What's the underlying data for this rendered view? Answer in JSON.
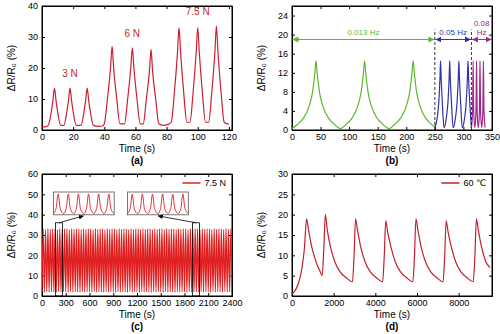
{
  "chart_data": [
    {
      "type": "line",
      "title": "(a)",
      "x_label": "Time (s)",
      "y_label": "ΔR/R₀ (%)",
      "xlim": [
        0,
        122
      ],
      "xticks": [
        0,
        20,
        40,
        60,
        80,
        100,
        120
      ],
      "ylim": [
        0,
        40
      ],
      "yticks": [
        0,
        10,
        20,
        30,
        40
      ],
      "x": [
        0,
        2,
        4,
        6,
        7,
        8,
        9,
        10,
        12,
        14,
        16,
        17,
        18,
        19,
        20,
        22,
        25,
        27,
        28,
        29,
        30,
        31,
        33,
        36,
        39,
        40,
        42,
        44,
        45,
        46,
        48,
        50,
        53,
        55,
        57,
        58,
        59,
        61,
        63,
        65,
        67,
        69,
        70,
        71,
        73,
        75,
        78,
        81,
        83,
        85,
        87,
        88,
        89,
        91,
        93,
        95,
        97,
        99,
        100,
        101,
        103,
        105,
        107,
        109,
        111,
        112,
        113,
        115,
        117,
        119,
        120
      ],
      "series": [
        {
          "color": "#cc1f2f",
          "values": [
            1,
            1,
            1.5,
            6,
            9.5,
            13.5,
            9.5,
            6,
            1.5,
            1.5,
            6,
            9.5,
            13.5,
            9.5,
            6,
            1.5,
            1.5,
            6,
            9.5,
            13.5,
            9.5,
            6,
            1.5,
            1.2,
            1.3,
            2,
            10,
            20,
            27,
            20,
            10,
            2,
            2,
            10,
            20,
            26.5,
            20,
            10,
            2,
            2,
            10,
            19,
            26,
            19,
            10,
            2,
            1.5,
            1.8,
            2.5,
            12,
            25,
            33,
            25,
            12,
            2.5,
            2.5,
            12,
            25,
            33,
            25,
            12,
            2.5,
            2.5,
            12,
            25,
            33.5,
            25,
            12,
            2.5,
            2,
            2
          ]
        }
      ],
      "annotations": [
        {
          "text": "3 N",
          "x": 18,
          "y": 17
        },
        {
          "text": "6 N",
          "x": 58,
          "y": 30
        },
        {
          "text": "7.5 N",
          "x": 100,
          "y": 37
        }
      ]
    },
    {
      "type": "line",
      "title": "(b)",
      "x_label": "Time (s)",
      "y_label": "ΔR/R₀ (%)",
      "xlim": [
        0,
        350
      ],
      "xticks": [
        0,
        50,
        100,
        150,
        200,
        250,
        300,
        350
      ],
      "ylim": [
        0,
        26
      ],
      "yticks": [
        0,
        4,
        8,
        12,
        16,
        20,
        24
      ],
      "series": [
        {
          "color": "#5cb82e",
          "x": [
            0,
            10,
            20,
            30,
            36,
            40,
            42,
            44,
            48,
            54,
            64,
            74,
            85,
            95,
            105,
            115,
            121,
            125,
            127,
            129,
            133,
            139,
            149,
            159,
            170,
            180,
            190,
            200,
            206,
            210,
            212,
            214,
            218,
            224,
            234,
            244,
            250
          ],
          "values": [
            0.3,
            1.2,
            2.5,
            5,
            8,
            12,
            14.5,
            12,
            8,
            5,
            2.5,
            1.2,
            0.3,
            1.2,
            2.5,
            5,
            8,
            12,
            14.5,
            12,
            8,
            5,
            2.5,
            1.2,
            0.3,
            1.2,
            2.5,
            5,
            8,
            12,
            14.5,
            12,
            8,
            5,
            2.5,
            1.2,
            0.6
          ]
        },
        {
          "color": "#2f35a8",
          "x": [
            250,
            254,
            257,
            259,
            260,
            261,
            263,
            266,
            270,
            273,
            275,
            276,
            277,
            279,
            282,
            286,
            289,
            291,
            292,
            293,
            295,
            298,
            302,
            305,
            307,
            308,
            309,
            311,
            314
          ],
          "values": [
            0.5,
            2.5,
            6,
            11,
            14.5,
            11,
            6,
            0.5,
            2.5,
            6,
            11,
            14.5,
            11,
            6,
            0.5,
            2.5,
            6,
            11,
            14.5,
            11,
            6,
            0.5,
            2.5,
            6,
            11,
            14.5,
            11,
            6,
            0.5
          ]
        },
        {
          "color": "#a0298a",
          "x": [
            314,
            316,
            317,
            318,
            320,
            322,
            323,
            324,
            326,
            328,
            329,
            330,
            332,
            334,
            335,
            336,
            338
          ],
          "values": [
            0.5,
            4,
            14.5,
            4,
            0.5,
            4,
            14.5,
            4,
            0.5,
            4,
            14.5,
            4,
            0.5,
            4,
            14.5,
            4,
            0.5
          ]
        }
      ],
      "regions": [
        {
          "label": "0.013 Hz",
          "start": 0,
          "end": 250,
          "color": "#5cb82e"
        },
        {
          "label": "0.05 Hz",
          "start": 250,
          "end": 314,
          "color": "#2f35a8"
        },
        {
          "label": "0.08 Hz",
          "start": 314,
          "end": 350,
          "color": "#a0298a"
        }
      ]
    },
    {
      "type": "line",
      "title": "(c)",
      "x_label": "Time (s)",
      "y_label": "ΔR/R₀ (%)",
      "xlim": [
        0,
        2400
      ],
      "xticks": [
        0,
        300,
        600,
        900,
        1200,
        1500,
        1800,
        2100,
        2400
      ],
      "ylim": [
        0,
        60
      ],
      "yticks": [
        0,
        10,
        20,
        30,
        40,
        50,
        60
      ],
      "legend": "upper right",
      "x": [
        0,
        15,
        30,
        45,
        60,
        75,
        90,
        105,
        120,
        135,
        150,
        165,
        180,
        195,
        210,
        225,
        240,
        255,
        270,
        285,
        300,
        315,
        330,
        345,
        360,
        375,
        390,
        405,
        420,
        435,
        450,
        465,
        480,
        495,
        510,
        525,
        540,
        555,
        570,
        585,
        600,
        615,
        630,
        645,
        660,
        675,
        690,
        705,
        720,
        735,
        750,
        765,
        780,
        795,
        810,
        825,
        840,
        855,
        870,
        885,
        900,
        915,
        930,
        945,
        960,
        975,
        990,
        1005,
        1020,
        1035,
        1050,
        1065,
        1080,
        1095,
        1110,
        1125,
        1140,
        1155,
        1170,
        1185,
        1200,
        1215,
        1230,
        1245,
        1260,
        1275,
        1290,
        1305,
        1320,
        1335,
        1350,
        1365,
        1380,
        1395,
        1410,
        1425,
        1440,
        1455,
        1470,
        1485,
        1500,
        1515,
        1530,
        1545,
        1560,
        1575,
        1590,
        1605,
        1620,
        1635,
        1650,
        1665,
        1680,
        1695,
        1710,
        1725,
        1740,
        1755,
        1770,
        1785,
        1800,
        1815,
        1830,
        1845,
        1860,
        1875,
        1890,
        1905,
        1920,
        1935,
        1950,
        1965,
        1980,
        1995,
        2010,
        2025,
        2040,
        2055,
        2070,
        2085,
        2100,
        2115,
        2130,
        2145,
        2160,
        2175,
        2190,
        2205,
        2220,
        2235,
        2250,
        2265,
        2280,
        2295,
        2310,
        2325,
        2340,
        2355,
        2370,
        2385,
        2400
      ],
      "series": [
        {
          "name": "7.5 N",
          "color": "#e02020",
          "values": [
            2,
            33,
            1.8,
            32.6,
            2.2,
            33.2,
            1.9,
            32.8,
            2.1,
            33,
            2,
            33,
            1.8,
            32.6,
            2.2,
            33.2,
            1.9,
            32.8,
            2.1,
            33,
            2,
            33,
            1.8,
            32.6,
            2.2,
            33.2,
            1.9,
            32.8,
            2.1,
            33,
            2,
            33,
            1.8,
            32.6,
            2.2,
            33.2,
            1.9,
            32.8,
            2.1,
            33,
            2,
            33,
            1.8,
            32.6,
            2.2,
            33.2,
            1.9,
            32.8,
            2.1,
            33,
            2,
            33,
            1.8,
            32.6,
            2.2,
            33.2,
            1.9,
            32.8,
            2.1,
            33,
            2,
            33,
            1.8,
            32.6,
            2.2,
            33.2,
            1.9,
            32.8,
            2.1,
            33,
            2,
            33,
            1.8,
            32.6,
            2.2,
            33.2,
            1.9,
            32.8,
            2.1,
            33,
            2,
            33,
            1.8,
            32.6,
            2.2,
            33.2,
            1.9,
            32.8,
            2.1,
            33,
            2,
            33,
            1.8,
            32.6,
            2.2,
            33.2,
            1.9,
            32.8,
            2.1,
            33,
            2,
            33,
            1.8,
            32.6,
            2.2,
            33.2,
            1.9,
            32.8,
            2.1,
            33,
            2,
            33,
            1.8,
            32.6,
            2.2,
            33.2,
            1.9,
            32.8,
            2.1,
            33,
            2,
            33,
            1.8,
            32.6,
            2.2,
            33.2,
            1.9,
            32.8,
            2.1,
            33,
            2,
            33,
            1.8,
            32.6,
            2.2,
            33.2,
            1.9,
            32.8,
            2.1,
            33,
            2,
            33,
            1.8,
            32.6,
            2.2,
            33.2,
            1.9,
            32.8,
            2.1,
            33,
            2,
            33,
            1.8,
            32.6,
            2.2,
            33.2,
            1.9,
            32.8,
            2.1,
            33,
            2
          ]
        }
      ],
      "insets": [
        {
          "color": "#e02020",
          "xlim": [
            170,
            260
          ],
          "ylim": [
            0,
            36
          ],
          "x": [
            170,
            174,
            177,
            180,
            185,
            189,
            192,
            195,
            200,
            204,
            207,
            210,
            215,
            219,
            222,
            225,
            230,
            234,
            237,
            240,
            245,
            249,
            252,
            255,
            260
          ],
          "values": [
            2,
            10,
            33,
            10,
            2,
            10,
            33,
            10,
            2,
            10,
            33,
            10,
            2,
            10,
            33,
            10,
            2,
            10,
            33,
            10,
            2,
            10,
            33,
            10,
            2
          ]
        },
        {
          "color": "#e02020",
          "xlim": [
            1900,
            1990
          ],
          "ylim": [
            0,
            36
          ],
          "x": [
            1900,
            1904,
            1907,
            1910,
            1915,
            1919,
            1922,
            1925,
            1930,
            1934,
            1937,
            1940,
            1945,
            1949,
            1952,
            1955,
            1960,
            1964,
            1967,
            1970,
            1975,
            1979,
            1982,
            1985,
            1990
          ],
          "values": [
            2,
            10,
            32.5,
            10,
            2,
            10,
            33,
            10,
            2,
            10,
            32.8,
            10,
            2,
            10,
            33,
            10,
            2,
            10,
            32.6,
            10,
            2,
            10,
            33,
            10,
            2
          ]
        }
      ]
    },
    {
      "type": "line",
      "title": "(d)",
      "x_label": "Time (s)",
      "y_label": "ΔR/R₀ (%)",
      "xlim": [
        0,
        9600
      ],
      "xticks": [
        0,
        2000,
        4000,
        6000,
        8000
      ],
      "ylim": [
        0,
        30
      ],
      "yticks": [
        0,
        5,
        10,
        15,
        20,
        25,
        30
      ],
      "legend": "upper right",
      "x": [
        0,
        300,
        600,
        700,
        800,
        950,
        1150,
        1350,
        1450,
        1530,
        1600,
        1700,
        1850,
        2050,
        2300,
        2600,
        2900,
        2980,
        3050,
        3150,
        3300,
        3500,
        3750,
        4050,
        4350,
        4430,
        4500,
        4600,
        4750,
        4950,
        5200,
        5500,
        5800,
        5880,
        5950,
        6050,
        6200,
        6400,
        6650,
        6950,
        7250,
        7330,
        7400,
        7500,
        7650,
        7850,
        8100,
        8400,
        8700,
        8780,
        8850,
        8950,
        9100,
        9300,
        9500
      ],
      "series": [
        {
          "name": "60 ℃",
          "color": "#c4202a",
          "values": [
            0.5,
            3,
            12,
            19,
            16,
            12,
            8.5,
            6,
            5,
            12,
            20,
            16,
            12,
            8.5,
            6,
            4.5,
            3.5,
            10,
            19,
            16,
            12,
            8.5,
            6,
            4.5,
            3.5,
            10,
            18.5,
            15.5,
            12,
            8.5,
            6,
            4.5,
            3.5,
            10,
            19,
            16,
            12,
            8.5,
            6,
            4.5,
            3.5,
            10,
            18.5,
            15.5,
            12,
            8.5,
            6,
            4.5,
            3.5,
            10,
            19,
            16,
            12,
            8.5,
            7
          ]
        }
      ]
    }
  ]
}
